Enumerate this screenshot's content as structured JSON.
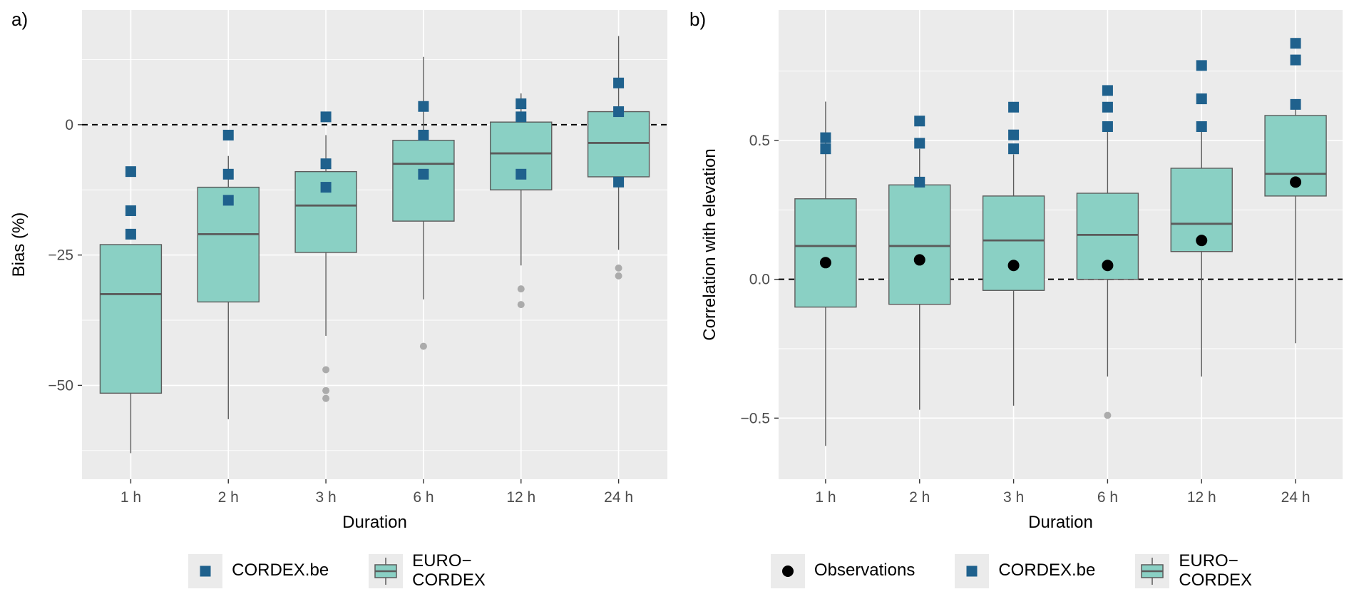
{
  "figure": {
    "panel_a_label": "a)",
    "panel_b_label": "b)"
  },
  "colors": {
    "panel_bg": "#EBEBEB",
    "grid": "#FFFFFF",
    "box_fill": "#8AD0C4",
    "box_stroke": "#5B5B5B",
    "median": "#5B5B5B",
    "whisker": "#5B5B5B",
    "cordex_marker": "#1F618D",
    "obs_marker": "#000000",
    "outlier": "#ABABAB",
    "zero_line": "#000000",
    "tick_text": "#4D4D4D",
    "axis_title": "#000000",
    "legend_key_bg": "#EBEBEB"
  },
  "chart_data": [
    {
      "type": "boxplot",
      "panel": "a",
      "title": "",
      "xlabel": "Duration",
      "ylabel": "Bias (%)",
      "categories": [
        "1 h",
        "2 h",
        "3 h",
        "6 h",
        "12 h",
        "24 h"
      ],
      "ylim": [
        -68,
        22
      ],
      "yticks": [
        0,
        -25,
        -50
      ],
      "ytick_labels": [
        "0",
        "−25",
        "−50"
      ],
      "yticks_minor": [
        12.5,
        -12.5,
        -37.5,
        -62.5
      ],
      "reference_line": 0,
      "grid": true,
      "boxes": [
        {
          "lo": -63,
          "q1": -51.5,
          "med": -32.5,
          "q3": -23,
          "hi": -23,
          "outliers": [],
          "cordex": [
            -9,
            -16.5,
            -21
          ]
        },
        {
          "lo": -56.5,
          "q1": -34,
          "med": -21,
          "q3": -12,
          "hi": -6,
          "outliers": [],
          "cordex": [
            -2,
            -9.5,
            -14.5
          ]
        },
        {
          "lo": -40.5,
          "q1": -24.5,
          "med": -15.5,
          "q3": -9,
          "hi": -2,
          "outliers": [
            -47,
            -51,
            -52.5
          ],
          "cordex": [
            1.5,
            -7.5,
            -12
          ]
        },
        {
          "lo": -33.5,
          "q1": -18.5,
          "med": -7.5,
          "q3": -3,
          "hi": 13,
          "outliers": [
            -42.5
          ],
          "cordex": [
            3.5,
            -2,
            -9.5
          ]
        },
        {
          "lo": -27,
          "q1": -12.5,
          "med": -5.5,
          "q3": 0.5,
          "hi": 6,
          "outliers": [
            -31.5,
            -34.5
          ],
          "cordex": [
            4,
            1.5,
            -9.5
          ]
        },
        {
          "lo": -24,
          "q1": -10,
          "med": -3.5,
          "q3": 2.5,
          "hi": 17,
          "outliers": [
            -27.5,
            -29
          ],
          "cordex": [
            8,
            2.5,
            -11
          ]
        }
      ]
    },
    {
      "type": "boxplot",
      "panel": "b",
      "title": "",
      "xlabel": "Duration",
      "ylabel": "Correlation with elevation",
      "categories": [
        "1 h",
        "2 h",
        "3 h",
        "6 h",
        "12 h",
        "24 h"
      ],
      "ylim": [
        -0.72,
        0.97
      ],
      "yticks": [
        0.5,
        0.0,
        -0.5
      ],
      "ytick_labels": [
        "0.5",
        "0.0",
        "−0.5"
      ],
      "yticks_minor": [
        0.75,
        0.25,
        -0.25
      ],
      "reference_line": 0,
      "grid": true,
      "boxes": [
        {
          "lo": -0.6,
          "q1": -0.1,
          "med": 0.12,
          "q3": 0.29,
          "hi": 0.64,
          "outliers": [],
          "cordex": [
            0.51,
            0.47
          ],
          "obs": 0.06
        },
        {
          "lo": -0.47,
          "q1": -0.09,
          "med": 0.12,
          "q3": 0.34,
          "hi": 0.47,
          "outliers": [],
          "cordex": [
            0.57,
            0.49,
            0.35
          ],
          "obs": 0.07
        },
        {
          "lo": -0.455,
          "q1": -0.04,
          "med": 0.14,
          "q3": 0.3,
          "hi": 0.45,
          "outliers": [],
          "cordex": [
            0.62,
            0.52,
            0.47
          ],
          "obs": 0.05
        },
        {
          "lo": -0.35,
          "q1": 0.0,
          "med": 0.16,
          "q3": 0.31,
          "hi": 0.55,
          "outliers": [
            -0.49
          ],
          "cordex": [
            0.68,
            0.62,
            0.55
          ],
          "obs": 0.05
        },
        {
          "lo": -0.35,
          "q1": 0.1,
          "med": 0.2,
          "q3": 0.4,
          "hi": 0.55,
          "outliers": [],
          "cordex": [
            0.77,
            0.65,
            0.55
          ],
          "obs": 0.14
        },
        {
          "lo": -0.23,
          "q1": 0.3,
          "med": 0.38,
          "q3": 0.59,
          "hi": 0.63,
          "outliers": [],
          "cordex": [
            0.85,
            0.79,
            0.63
          ],
          "obs": 0.35
        }
      ]
    }
  ],
  "legends": {
    "a": [
      {
        "key": "cordex-be",
        "glyph": "square",
        "label": "CORDEX.be"
      },
      {
        "key": "euro-cordex",
        "glyph": "boxglyph",
        "label": "EURO−\nCORDEX"
      }
    ],
    "b": [
      {
        "key": "observations",
        "glyph": "dot",
        "label": "Observations"
      },
      {
        "key": "cordex-be",
        "glyph": "square",
        "label": "CORDEX.be"
      },
      {
        "key": "euro-cordex",
        "glyph": "boxglyph",
        "label": "EURO−\nCORDEX"
      }
    ]
  }
}
